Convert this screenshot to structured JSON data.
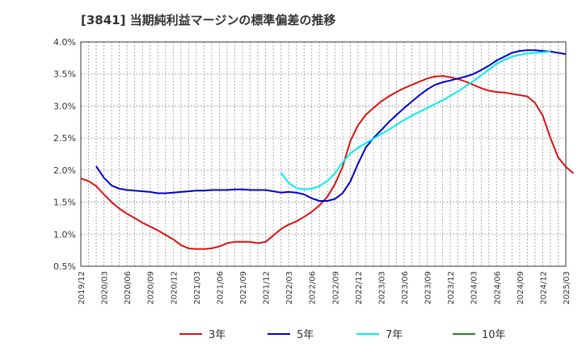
{
  "chart_data": {
    "type": "line",
    "title": "[3841]  当期純利益マージンの標準偏差の推移",
    "xlabel": "",
    "ylabel": "",
    "ylim": [
      0.5,
      4.0
    ],
    "grid": true,
    "legend_position": "bottom",
    "y_ticks": [
      "0.5%",
      "1.0%",
      "1.5%",
      "2.0%",
      "2.5%",
      "3.0%",
      "3.5%",
      "4.0%"
    ],
    "x_ticks": [
      "2019/12",
      "2020/03",
      "2020/06",
      "2020/09",
      "2020/12",
      "2021/03",
      "2021/06",
      "2021/09",
      "2021/12",
      "2022/03",
      "2022/06",
      "2022/09",
      "2022/12",
      "2023/03",
      "2023/06",
      "2023/09",
      "2023/12",
      "2024/03",
      "2024/06",
      "2024/09",
      "2024/12",
      "2025/03"
    ],
    "series": [
      {
        "name": "3年",
        "color": "#dd1111",
        "start": "2019/12",
        "values": [
          1.87,
          1.83,
          1.75,
          1.62,
          1.5,
          1.4,
          1.32,
          1.25,
          1.18,
          1.12,
          1.06,
          0.99,
          0.92,
          0.83,
          0.78,
          0.77,
          0.77,
          0.78,
          0.81,
          0.86,
          0.88,
          0.88,
          0.88,
          0.86,
          0.88,
          0.98,
          1.08,
          1.15,
          1.2,
          1.27,
          1.35,
          1.45,
          1.58,
          1.78,
          2.05,
          2.45,
          2.7,
          2.86,
          2.97,
          3.07,
          3.15,
          3.22,
          3.28,
          3.33,
          3.38,
          3.43,
          3.46,
          3.47,
          3.45,
          3.42,
          3.38,
          3.33,
          3.28,
          3.24,
          3.22,
          3.21,
          3.19,
          3.17,
          3.15,
          3.05,
          2.85,
          2.5,
          2.2,
          2.05,
          1.95
        ]
      },
      {
        "name": "5年",
        "color": "#0000cc",
        "start": "2020/02",
        "values": [
          2.06,
          1.88,
          1.76,
          1.71,
          1.69,
          1.68,
          1.67,
          1.66,
          1.64,
          1.64,
          1.65,
          1.66,
          1.67,
          1.68,
          1.68,
          1.69,
          1.69,
          1.69,
          1.7,
          1.7,
          1.69,
          1.69,
          1.69,
          1.67,
          1.65,
          1.66,
          1.65,
          1.62,
          1.56,
          1.52,
          1.52,
          1.55,
          1.64,
          1.82,
          2.1,
          2.35,
          2.5,
          2.62,
          2.75,
          2.86,
          2.97,
          3.07,
          3.17,
          3.26,
          3.33,
          3.37,
          3.4,
          3.43,
          3.46,
          3.5,
          3.56,
          3.63,
          3.71,
          3.77,
          3.83,
          3.86,
          3.87,
          3.87,
          3.86,
          3.85,
          3.83,
          3.81
        ]
      },
      {
        "name": "7年",
        "color": "#00eeee",
        "start": "2022/02",
        "values": [
          1.96,
          1.8,
          1.72,
          1.7,
          1.71,
          1.75,
          1.83,
          1.95,
          2.12,
          2.26,
          2.35,
          2.42,
          2.49,
          2.56,
          2.63,
          2.71,
          2.78,
          2.85,
          2.91,
          2.97,
          3.03,
          3.09,
          3.16,
          3.23,
          3.31,
          3.39,
          3.48,
          3.57,
          3.66,
          3.72,
          3.77,
          3.8,
          3.82,
          3.83,
          3.84,
          3.85
        ]
      },
      {
        "name": "10年",
        "color": "#228822",
        "start": "2019/12",
        "values": []
      }
    ]
  }
}
